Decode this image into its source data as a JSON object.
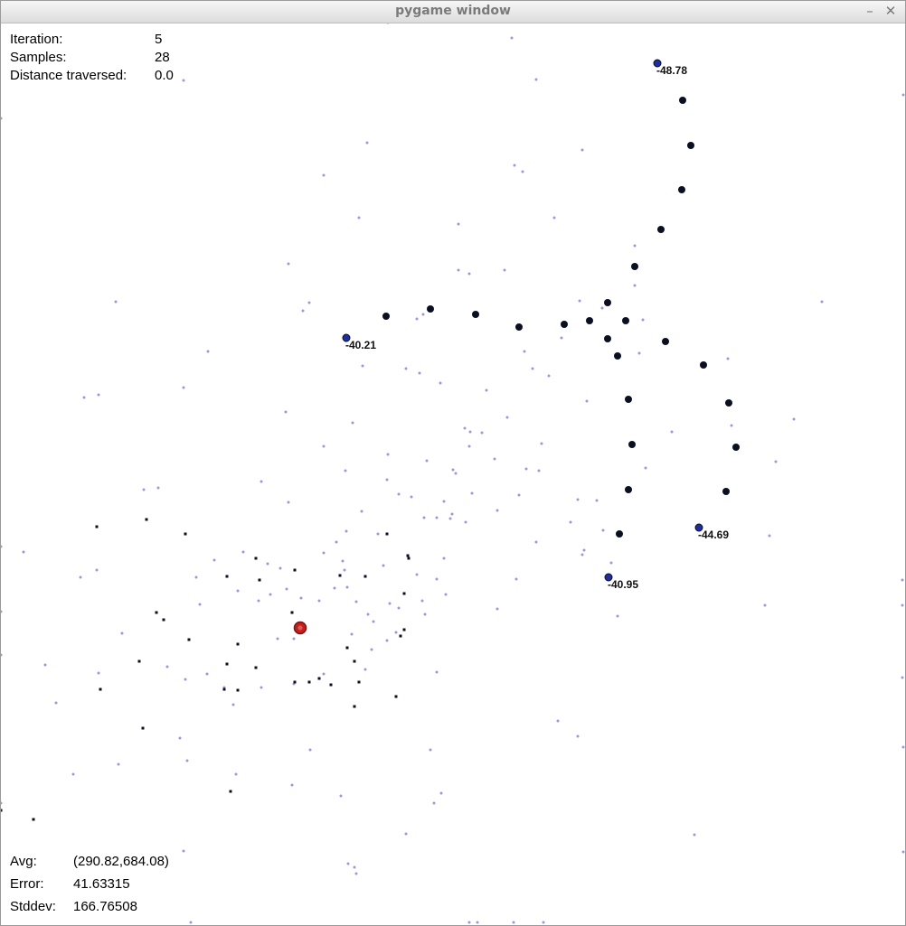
{
  "window": {
    "title": "pygame window",
    "minimize_glyph": "–",
    "close_glyph": "✕"
  },
  "stats_top": [
    {
      "label": "Iteration:",
      "value": "5"
    },
    {
      "label": "Samples:",
      "value": "28"
    },
    {
      "label": "Distance traversed:",
      "value": "0.0"
    }
  ],
  "stats_bottom": [
    {
      "label": "Avg:",
      "value": "(290.82,684.08)"
    },
    {
      "label": "Error:",
      "value": "41.63315"
    },
    {
      "label": "Stddev:",
      "value": "166.76508"
    }
  ],
  "beacons": [
    {
      "label": "-48.78"
    },
    {
      "label": "-40.21"
    },
    {
      "label": "-44.69"
    },
    {
      "label": "-40.95"
    }
  ],
  "colors": {
    "particle": "#9d97d8",
    "sample": "#0b0f22",
    "beacon": "#1f2da0",
    "estimate": "#c0201e",
    "hud_text": "#000000"
  }
}
